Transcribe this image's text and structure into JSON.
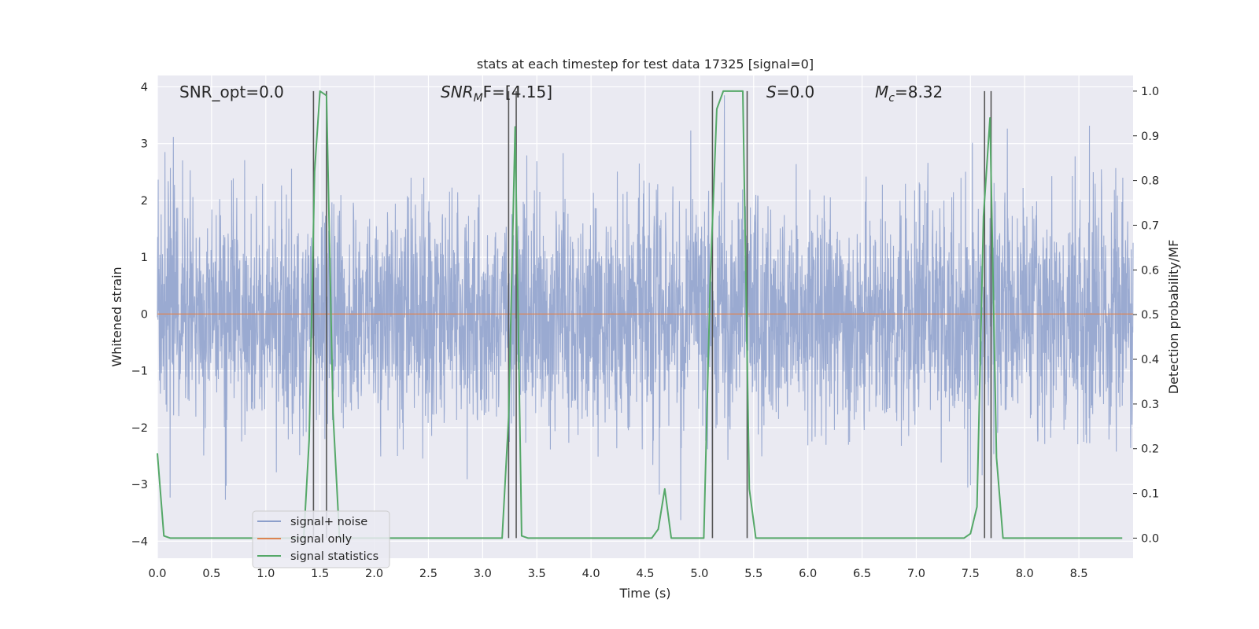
{
  "chart_data": {
    "type": "line",
    "title": "stats at each timestep for test data 17325 [signal=0]",
    "xlabel": "Time (s)",
    "ylabel": "Whitened strain",
    "ylabel_right": "Detection probability/MF",
    "xlim": [
      0,
      9.0
    ],
    "ylim": [
      -4.3,
      4.2
    ],
    "ylim_right": [
      -0.045,
      1.035
    ],
    "x_ticks": [
      "0.0",
      "0.5",
      "1.0",
      "1.5",
      "2.0",
      "2.5",
      "3.0",
      "3.5",
      "4.0",
      "4.5",
      "5.0",
      "5.5",
      "6.0",
      "6.5",
      "7.0",
      "7.5",
      "8.0",
      "8.5"
    ],
    "x_tick_values": [
      0,
      0.5,
      1.0,
      1.5,
      2.0,
      2.5,
      3.0,
      3.5,
      4.0,
      4.5,
      5.0,
      5.5,
      6.0,
      6.5,
      7.0,
      7.5,
      8.0,
      8.5
    ],
    "y_ticks": [
      "4",
      "3",
      "2",
      "1",
      "0",
      "−1",
      "−2",
      "−3",
      "−4"
    ],
    "y_tick_values": [
      4,
      3,
      2,
      1,
      0,
      -1,
      -2,
      -3,
      -4
    ],
    "y_right_ticks": [
      "1.0",
      "0.9",
      "0.8",
      "0.7",
      "0.6",
      "0.5",
      "0.4",
      "0.3",
      "0.2",
      "0.1",
      "0.0"
    ],
    "y_right_tick_values": [
      1.0,
      0.9,
      0.8,
      0.7,
      0.6,
      0.5,
      0.4,
      0.3,
      0.2,
      0.1,
      0.0
    ],
    "grid": true,
    "legend_position": "lower-left",
    "legend": [
      "signal+ noise",
      "signal only",
      "signal statistics"
    ],
    "annotations": {
      "snr_opt": "SNR_opt=0.0",
      "snr_mf_main": "SNR",
      "snr_mf_sub": "M",
      "snr_mf_rest": "F=[4.15]",
      "s_var": "S",
      "s_rest": "=0.0",
      "mc_main": "M",
      "mc_sub": "c",
      "mc_rest": "=8.32"
    },
    "series": [
      {
        "name": "signal+ noise",
        "axis": "left",
        "color": "#8c9fcb",
        "kind": "noise",
        "noise_sigma": 1.0,
        "sample_rate_hz": 400
      },
      {
        "name": "signal only",
        "axis": "left",
        "color": "#dd8452",
        "x": [
          0,
          9.0
        ],
        "y": [
          0,
          0
        ]
      },
      {
        "name": "signal statistics",
        "axis": "right",
        "color": "#55a868",
        "x": [
          0.0,
          0.06,
          0.12,
          1.35,
          1.4,
          1.45,
          1.5,
          1.56,
          1.62,
          1.68,
          3.18,
          3.24,
          3.3,
          3.36,
          3.42,
          4.56,
          4.62,
          4.68,
          4.74,
          5.04,
          5.1,
          5.16,
          5.22,
          5.4,
          5.46,
          5.52,
          7.44,
          7.5,
          7.56,
          7.62,
          7.68,
          7.74,
          7.8,
          8.9
        ],
        "y": [
          0.19,
          0.005,
          0.0,
          0.0,
          0.22,
          0.82,
          1.0,
          0.99,
          0.28,
          0.0,
          0.0,
          0.27,
          0.92,
          0.005,
          0.0,
          0.0,
          0.02,
          0.11,
          0.0,
          0.0,
          0.58,
          0.96,
          1.0,
          1.0,
          0.11,
          0.0,
          0.0,
          0.01,
          0.07,
          0.72,
          0.94,
          0.18,
          0.0,
          0.0
        ]
      }
    ],
    "vertical_markers_x": [
      1.44,
      1.56,
      3.24,
      3.31,
      5.12,
      5.44,
      7.63,
      7.69
    ],
    "marker_color": "#555555"
  }
}
